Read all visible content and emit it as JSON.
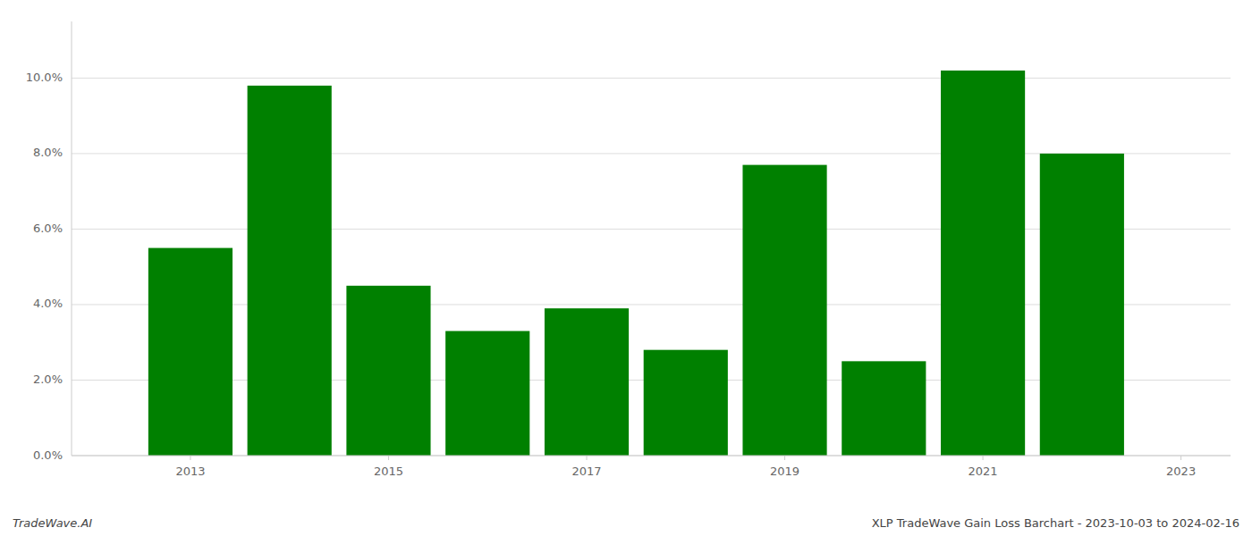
{
  "chart_data": {
    "type": "bar",
    "x": [
      2013,
      2014,
      2015,
      2016,
      2017,
      2018,
      2019,
      2020,
      2021,
      2022
    ],
    "values": [
      0.055,
      0.098,
      0.045,
      0.033,
      0.039,
      0.028,
      0.077,
      0.025,
      0.102,
      0.08
    ],
    "color": "#008000",
    "xlim": [
      2011.8,
      2023.5
    ],
    "xticks": [
      2013,
      2015,
      2017,
      2019,
      2021,
      2023
    ],
    "ylim": [
      0,
      0.115
    ],
    "yticks": [
      {
        "value": 0.0,
        "label": "0.0%"
      },
      {
        "value": 0.02,
        "label": "2.0%"
      },
      {
        "value": 0.04,
        "label": "4.0%"
      },
      {
        "value": 0.06,
        "label": "6.0%"
      },
      {
        "value": 0.08,
        "label": "8.0%"
      },
      {
        "value": 0.1,
        "label": "10.0%"
      }
    ],
    "grid": true,
    "annotations": [
      "TradeWave.AI",
      "XLP TradeWave Gain Loss Barchart - 2023-10-03 to 2024-02-16"
    ]
  }
}
